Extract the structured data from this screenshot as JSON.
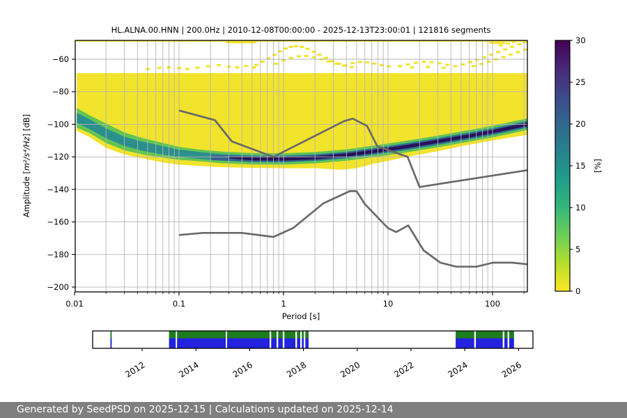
{
  "header": {
    "title": "HL.ALNA.00.HNN | 200.0Hz | 2010-12-08T00:00:00 - 2025-12-13T23:00:01 | 121816 segments"
  },
  "footer": {
    "text": "Generated by SeedPSD on 2025-12-15 | Calculations updated on 2025-12-14",
    "bg": "#7f7f7f"
  },
  "chart_data": {
    "type": "heatmap",
    "title": "HL.ALNA.00.HNN | 200.0Hz | 2010-12-08T00:00:00 - 2025-12-13T23:00:01 | 121816 segments",
    "xlabel": "Period [s]",
    "ylabel": "Amplitude [m²/s⁴/Hz] [dB]",
    "ylabel_parts": {
      "pre": "Amplitude [",
      "math": "m²/s⁴/Hz",
      "post": "] [dB]"
    },
    "xscale": "log",
    "xlim": [
      0.0102,
      215
    ],
    "ylim": [
      -203,
      -48
    ],
    "grid": true,
    "xticks": [
      0.01,
      0.1,
      1,
      10,
      100
    ],
    "xtick_labels": [
      "0.01",
      "0.1",
      "1",
      "10",
      "100"
    ],
    "xminor_ticks": [
      0.02,
      0.03,
      0.04,
      0.05,
      0.06,
      0.07,
      0.08,
      0.09,
      0.2,
      0.3,
      0.4,
      0.5,
      0.6,
      0.7,
      0.8,
      0.9,
      2,
      3,
      4,
      5,
      6,
      7,
      8,
      9,
      20,
      30,
      40,
      50,
      60,
      70,
      80,
      90,
      200
    ],
    "yticks": [
      -60,
      -80,
      -100,
      -120,
      -140,
      -160,
      -180,
      -200
    ],
    "ytick_labels": [
      "−60",
      "−80",
      "−100",
      "−120",
      "−140",
      "−160",
      "−180",
      "−200"
    ],
    "colorbar": {
      "label": "[%]",
      "min": 0,
      "max": 30,
      "ticks": [
        0,
        5,
        10,
        15,
        20,
        25,
        30
      ],
      "tick_labels": [
        "0",
        "5",
        "10",
        "15",
        "20",
        "25",
        "30"
      ],
      "colormap": "viridis reversed (0%=yellow, 30%=dark purple)",
      "stops": [
        "#fde725",
        "#b5de2b",
        "#6ece58",
        "#35b779",
        "#1f9e89",
        "#26828e",
        "#31688e",
        "#3e4989",
        "#482878",
        "#440154"
      ]
    },
    "colors": {
      "yellow": "#f2e32b",
      "green": "#63c453",
      "teal": "#2a8f8d",
      "blue": "#34618e",
      "dark": "#271258",
      "grid": "#b5b5b5",
      "model_line": "#696969"
    },
    "noise_models": {
      "nhnm": [
        [
          0.1,
          -91.5
        ],
        [
          0.22,
          -97.4
        ],
        [
          0.32,
          -110.5
        ],
        [
          0.8,
          -120
        ],
        [
          3.8,
          -98
        ],
        [
          4.6,
          -96.5
        ],
        [
          6.3,
          -101
        ],
        [
          7.9,
          -113.5
        ],
        [
          15.4,
          -120
        ],
        [
          20,
          -138.5
        ],
        [
          215,
          -128.2
        ]
      ],
      "nlnm": [
        [
          0.1,
          -168
        ],
        [
          0.17,
          -166.7
        ],
        [
          0.4,
          -166.7
        ],
        [
          0.8,
          -169.2
        ],
        [
          1.24,
          -163.7
        ],
        [
          2.4,
          -148.6
        ],
        [
          4.3,
          -141.1
        ],
        [
          5,
          -141.1
        ],
        [
          6,
          -149
        ],
        [
          10,
          -163.8
        ],
        [
          12,
          -166.2
        ],
        [
          15.6,
          -162.1
        ],
        [
          21.9,
          -177.5
        ],
        [
          31.6,
          -185
        ],
        [
          45,
          -187.5
        ],
        [
          70,
          -187.5
        ],
        [
          101,
          -185
        ],
        [
          154,
          -185
        ],
        [
          215,
          -186
        ]
      ]
    },
    "density": {
      "base_polygon": [
        [
          0.0105,
          -68.5
        ],
        [
          215,
          -68.5
        ],
        [
          215,
          -106.5
        ],
        [
          150,
          -108
        ],
        [
          100,
          -110
        ],
        [
          60,
          -112.5
        ],
        [
          30,
          -116.5
        ],
        [
          15,
          -120
        ],
        [
          10,
          -122.5
        ],
        [
          7,
          -124.5
        ],
        [
          5,
          -127
        ],
        [
          3.5,
          -128
        ],
        [
          2,
          -127
        ],
        [
          1,
          -127
        ],
        [
          0.5,
          -126.8
        ],
        [
          0.25,
          -126.3
        ],
        [
          0.15,
          -125.5
        ],
        [
          0.1,
          -124.8
        ],
        [
          0.07,
          -123.5
        ],
        [
          0.045,
          -121
        ],
        [
          0.03,
          -118.5
        ],
        [
          0.02,
          -114.5
        ],
        [
          0.014,
          -108
        ],
        [
          0.0105,
          -104
        ]
      ],
      "green_band": [
        [
          0.0105,
          -90
        ],
        [
          0.014,
          -94.5
        ],
        [
          0.02,
          -99.5
        ],
        [
          0.03,
          -105
        ],
        [
          0.045,
          -108.5
        ],
        [
          0.07,
          -111.5
        ],
        [
          0.1,
          -113.8
        ],
        [
          0.15,
          -115.4
        ],
        [
          0.25,
          -116.7
        ],
        [
          0.5,
          -117.7
        ],
        [
          1,
          -117.8
        ],
        [
          2,
          -117
        ],
        [
          4,
          -115.4
        ],
        [
          8,
          -112.7
        ],
        [
          15,
          -110.1
        ],
        [
          30,
          -106.9
        ],
        [
          60,
          -103.5
        ],
        [
          100,
          -100.9
        ],
        [
          150,
          -98.5
        ],
        [
          215,
          -96.4
        ],
        [
          215,
          -103.6
        ],
        [
          150,
          -105.7
        ],
        [
          100,
          -108.1
        ],
        [
          60,
          -110.7
        ],
        [
          30,
          -114.1
        ],
        [
          15,
          -117.3
        ],
        [
          8,
          -119.9
        ],
        [
          4,
          -122.4
        ],
        [
          2,
          -124
        ],
        [
          1,
          -124.8
        ],
        [
          0.5,
          -124.7
        ],
        [
          0.25,
          -123.9
        ],
        [
          0.15,
          -122.6
        ],
        [
          0.1,
          -121.8
        ],
        [
          0.07,
          -120.5
        ],
        [
          0.045,
          -118.5
        ],
        [
          0.03,
          -116
        ],
        [
          0.02,
          -111.5
        ],
        [
          0.014,
          -105.5
        ],
        [
          0.0105,
          -102
        ]
      ],
      "teal_band": [
        [
          0.0105,
          -93
        ],
        [
          0.014,
          -97
        ],
        [
          0.02,
          -102.5
        ],
        [
          0.03,
          -107.7
        ],
        [
          0.045,
          -110.7
        ],
        [
          0.07,
          -113.4
        ],
        [
          0.1,
          -115.6
        ],
        [
          0.15,
          -116.9
        ],
        [
          0.25,
          -118.2
        ],
        [
          0.5,
          -119.1
        ],
        [
          1,
          -119.2
        ],
        [
          2,
          -118.4
        ],
        [
          4,
          -116.8
        ],
        [
          8,
          -114.2
        ],
        [
          15,
          -111.5
        ],
        [
          30,
          -108.3
        ],
        [
          60,
          -104.9
        ],
        [
          100,
          -102.3
        ],
        [
          150,
          -99.9
        ],
        [
          215,
          -97.8
        ],
        [
          215,
          -102.2
        ],
        [
          150,
          -104.3
        ],
        [
          100,
          -106.7
        ],
        [
          60,
          -109.3
        ],
        [
          30,
          -112.7
        ],
        [
          15,
          -115.9
        ],
        [
          8,
          -118.4
        ],
        [
          4,
          -121
        ],
        [
          2,
          -122.6
        ],
        [
          1,
          -123.4
        ],
        [
          0.5,
          -123.3
        ],
        [
          0.25,
          -122.4
        ],
        [
          0.15,
          -121.1
        ],
        [
          0.1,
          -120
        ],
        [
          0.07,
          -118.6
        ],
        [
          0.045,
          -116.3
        ],
        [
          0.03,
          -113.3
        ],
        [
          0.02,
          -108.5
        ],
        [
          0.014,
          -103
        ],
        [
          0.0105,
          -99
        ]
      ],
      "blue_band": [
        [
          0.2,
          -118.9
        ],
        [
          0.5,
          -119.5
        ],
        [
          1,
          -119.6
        ],
        [
          2,
          -118.8
        ],
        [
          4,
          -117.2
        ],
        [
          8,
          -114.6
        ],
        [
          15,
          -112
        ],
        [
          30,
          -108.8
        ],
        [
          60,
          -105.4
        ],
        [
          100,
          -102.8
        ],
        [
          150,
          -100.4
        ],
        [
          215,
          -98.3
        ],
        [
          215,
          -101.7
        ],
        [
          150,
          -103.8
        ],
        [
          100,
          -106.2
        ],
        [
          60,
          -108.8
        ],
        [
          30,
          -112.2
        ],
        [
          15,
          -115.4
        ],
        [
          8,
          -118
        ],
        [
          4,
          -120.6
        ],
        [
          2,
          -122.2
        ],
        [
          1,
          -123
        ],
        [
          0.5,
          -122.9
        ],
        [
          0.2,
          -121.9
        ]
      ],
      "dark_core": [
        [
          0.3,
          -119.9
        ],
        [
          0.5,
          -120.2
        ],
        [
          1,
          -120.3
        ],
        [
          2,
          -119.5
        ],
        [
          4,
          -117.9
        ],
        [
          8,
          -115.3
        ],
        [
          15,
          -112.7
        ],
        [
          30,
          -109.5
        ],
        [
          60,
          -106.1
        ],
        [
          100,
          -103.5
        ],
        [
          150,
          -101.1
        ],
        [
          215,
          -99
        ],
        [
          215,
          -101
        ],
        [
          150,
          -103.1
        ],
        [
          100,
          -105.5
        ],
        [
          60,
          -108.1
        ],
        [
          30,
          -111.5
        ],
        [
          15,
          -114.7
        ],
        [
          8,
          -117.3
        ],
        [
          4,
          -119.9
        ],
        [
          2,
          -121.5
        ],
        [
          1,
          -122.3
        ],
        [
          0.5,
          -122.2
        ],
        [
          0.3,
          -120.9
        ]
      ],
      "top_strip": {
        "p0": 0.0105,
        "p1": 215,
        "db": -48.7,
        "thickness": 2.4
      },
      "top_blob": {
        "p0": 0.28,
        "p1": 0.55,
        "db": -49.2,
        "thickness": 5
      },
      "topright_line": {
        "p0": 93,
        "p1": 132,
        "db": -50,
        "thickness": 3
      },
      "speckles": [
        [
          0.05,
          -66
        ],
        [
          0.065,
          -65.3
        ],
        [
          0.08,
          -65
        ],
        [
          0.1,
          -65.5
        ],
        [
          0.12,
          -66
        ],
        [
          0.15,
          -65.2
        ],
        [
          0.19,
          -64.3
        ],
        [
          0.24,
          -63.6
        ],
        [
          0.3,
          -64.6
        ],
        [
          0.36,
          -65
        ],
        [
          0.44,
          -64.2
        ],
        [
          0.52,
          -65.1
        ],
        [
          0.55,
          -63.5
        ],
        [
          0.63,
          -61.5
        ],
        [
          0.72,
          -59.5
        ],
        [
          0.82,
          -57.3
        ],
        [
          0.93,
          -55.2
        ],
        [
          1.05,
          -53.5
        ],
        [
          1.18,
          -52.4
        ],
        [
          1.32,
          -52.0
        ],
        [
          1.5,
          -52.4
        ],
        [
          1.7,
          -53.6
        ],
        [
          1.95,
          -55.4
        ],
        [
          2.2,
          -57.2
        ],
        [
          2.55,
          -59.2
        ],
        [
          2.95,
          -61.2
        ],
        [
          3.4,
          -62.8
        ],
        [
          3.9,
          -63.8
        ],
        [
          0.85,
          -62.8
        ],
        [
          1.0,
          -60.8
        ],
        [
          1.18,
          -59.2
        ],
        [
          1.4,
          -58.2
        ],
        [
          1.65,
          -58.0
        ],
        [
          1.95,
          -58.8
        ],
        [
          2.3,
          -60.0
        ],
        [
          2.7,
          -61.4
        ],
        [
          3.2,
          -62.8
        ],
        [
          3.8,
          -64.0
        ],
        [
          4.5,
          -64.8
        ],
        [
          4.6,
          -62.4
        ],
        [
          5.4,
          -61.7
        ],
        [
          6.3,
          -61.9
        ],
        [
          7.4,
          -62.7
        ],
        [
          8.7,
          -63.7
        ],
        [
          10.2,
          -64.4
        ],
        [
          13,
          -64.2
        ],
        [
          15.5,
          -63.2
        ],
        [
          18.5,
          -62.2
        ],
        [
          22,
          -61.6
        ],
        [
          26,
          -61.8
        ],
        [
          31,
          -62.5
        ],
        [
          37,
          -63.4
        ],
        [
          44,
          -64.3
        ],
        [
          17,
          -65.0
        ],
        [
          24,
          -64.8
        ],
        [
          34,
          -65.2
        ],
        [
          52,
          -63.2
        ],
        [
          61,
          -61.8
        ],
        [
          71,
          -60.3
        ],
        [
          83,
          -58.8
        ],
        [
          97,
          -57.2
        ],
        [
          113,
          -55.6
        ],
        [
          132,
          -54.0
        ],
        [
          154,
          -52.4
        ],
        [
          180,
          -50.8
        ],
        [
          205,
          -49.6
        ],
        [
          66,
          -64.2
        ],
        [
          78,
          -62.9
        ],
        [
          92,
          -61.5
        ],
        [
          108,
          -60.1
        ],
        [
          127,
          -58.6
        ],
        [
          149,
          -57.1
        ],
        [
          175,
          -55.6
        ],
        [
          205,
          -54.1
        ],
        [
          120,
          -51.5
        ],
        [
          140,
          -50.4
        ],
        [
          160,
          -49.4
        ],
        [
          178,
          -48.6
        ],
        [
          196,
          -48.1
        ],
        [
          212,
          -47.8
        ]
      ]
    },
    "timeline": {
      "year_ticks": [
        2012,
        2014,
        2016,
        2018,
        2020,
        2022,
        2024,
        2026
      ],
      "year_tick_labels": [
        "2012",
        "2014",
        "2016",
        "2018",
        "2020",
        "2022",
        "2024",
        "2026"
      ],
      "green": "#1e7d1e",
      "blue": "#2323dd",
      "green_frac": 0.42,
      "segments": [
        [
          2010.82,
          2010.87
        ],
        [
          2013.0,
          2013.25
        ],
        [
          2013.3,
          2015.11
        ],
        [
          2015.16,
          2016.74
        ],
        [
          2016.8,
          2017.0
        ],
        [
          2017.06,
          2017.23
        ],
        [
          2017.29,
          2017.7
        ],
        [
          2017.76,
          2017.88
        ],
        [
          2017.94,
          2018.01
        ],
        [
          2018.07,
          2018.19
        ],
        [
          2023.66,
          2024.35
        ],
        [
          2024.41,
          2025.41
        ],
        [
          2025.47,
          2025.59
        ],
        [
          2025.65,
          2025.83
        ]
      ]
    }
  }
}
